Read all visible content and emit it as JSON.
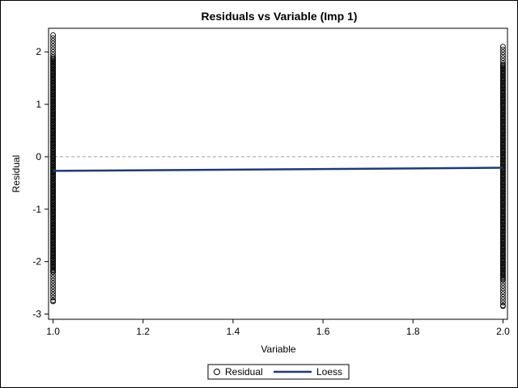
{
  "chart_data": {
    "type": "scatter",
    "title": "Residuals vs Variable (Imp 1)",
    "xlabel": "Variable",
    "ylabel": "Residual",
    "xlim": [
      0.99,
      2.01
    ],
    "ylim": [
      -3.1,
      2.45
    ],
    "x_ticks": [
      "1.0",
      "1.2",
      "1.4",
      "1.6",
      "1.8",
      "2.0"
    ],
    "y_ticks": [
      "2",
      "1",
      "0",
      "-1",
      "-2",
      "-3"
    ],
    "reference_line": {
      "y": 0,
      "style": "dashed",
      "color": "#a0a0a0"
    },
    "series": [
      {
        "name": "Residual",
        "kind": "scatter",
        "marker": "open-circle",
        "color": "#000000",
        "groups": [
          {
            "x": 1.0,
            "y_min": -2.76,
            "y_max": 2.32,
            "dense_min": -2.2,
            "dense_max": 1.9
          },
          {
            "x": 2.0,
            "y_min": -2.85,
            "y_max": 2.1,
            "dense_min": -2.35,
            "dense_max": 1.75
          }
        ]
      },
      {
        "name": "Loess",
        "kind": "line",
        "color": "#1f3a73",
        "x": [
          1.0,
          2.0
        ],
        "y": [
          -0.27,
          -0.21
        ]
      }
    ],
    "legend": {
      "position": "bottom-center",
      "entries": [
        "Residual",
        "Loess"
      ]
    },
    "grid": false
  }
}
